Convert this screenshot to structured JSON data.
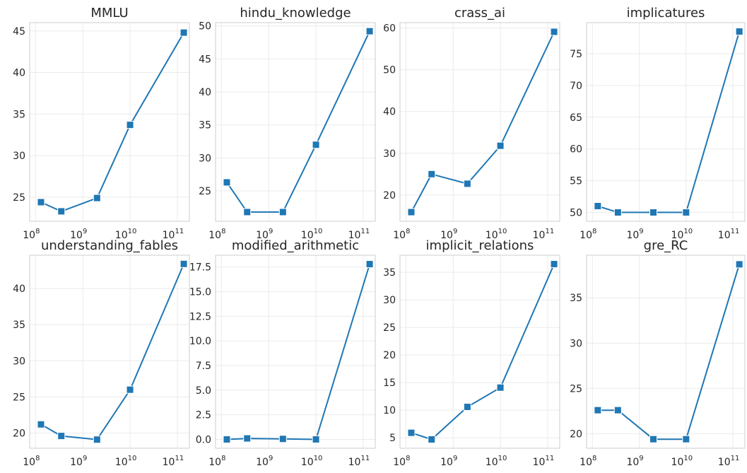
{
  "chart_data": [
    {
      "type": "line",
      "title": "MMLU",
      "x": [
        130000000,
        350000000,
        2000000000,
        10000000000,
        137000000000
      ],
      "y": [
        24.4,
        23.3,
        24.9,
        33.7,
        44.8
      ],
      "xscale": "log",
      "xlim": [
        75000000,
        180000000000
      ],
      "ylim": [
        22.1,
        46.0
      ],
      "yticks": [
        25,
        30,
        35,
        40,
        45
      ],
      "ytick_labels": [
        "25",
        "30",
        "35",
        "40",
        "45"
      ],
      "grid": true
    },
    {
      "type": "line",
      "title": "hindu_knowledge",
      "x": [
        130000000,
        350000000,
        2000000000,
        10000000000,
        137000000000
      ],
      "y": [
        26.3,
        21.8,
        21.8,
        32.0,
        49.2
      ],
      "xscale": "log",
      "xlim": [
        75000000,
        180000000000
      ],
      "ylim": [
        20.4,
        50.5
      ],
      "yticks": [
        25,
        30,
        35,
        40,
        45,
        50
      ],
      "ytick_labels": [
        "25",
        "30",
        "35",
        "40",
        "45",
        "50"
      ],
      "grid": true
    },
    {
      "type": "line",
      "title": "crass_ai",
      "x": [
        130000000,
        350000000,
        2000000000,
        10000000000,
        137000000000
      ],
      "y": [
        15.9,
        25.0,
        22.7,
        31.8,
        59.1
      ],
      "xscale": "log",
      "xlim": [
        75000000,
        180000000000
      ],
      "ylim": [
        13.7,
        61.3
      ],
      "yticks": [
        20,
        30,
        40,
        50,
        60
      ],
      "ytick_labels": [
        "20",
        "30",
        "40",
        "50",
        "60"
      ],
      "grid": true
    },
    {
      "type": "line",
      "title": "implicatures",
      "x": [
        130000000,
        350000000,
        2000000000,
        10000000000,
        137000000000
      ],
      "y": [
        51.0,
        50.0,
        50.0,
        50.0,
        78.5
      ],
      "xscale": "log",
      "xlim": [
        75000000,
        180000000000
      ],
      "ylim": [
        48.6,
        79.9
      ],
      "yticks": [
        50,
        55,
        60,
        65,
        70,
        75
      ],
      "ytick_labels": [
        "50",
        "55",
        "60",
        "65",
        "70",
        "75"
      ],
      "grid": true
    },
    {
      "type": "line",
      "title": "understanding_fables",
      "x": [
        130000000,
        350000000,
        2000000000,
        10000000000,
        137000000000
      ],
      "y": [
        21.2,
        19.6,
        19.1,
        26.0,
        43.4
      ],
      "xscale": "log",
      "xlim": [
        75000000,
        180000000000
      ],
      "ylim": [
        17.9,
        44.6
      ],
      "yticks": [
        20,
        25,
        30,
        35,
        40
      ],
      "ytick_labels": [
        "20",
        "25",
        "30",
        "35",
        "40"
      ],
      "grid": true
    },
    {
      "type": "line",
      "title": "modified_arithmetic",
      "x": [
        130000000,
        350000000,
        2000000000,
        10000000000,
        137000000000
      ],
      "y": [
        0.0,
        0.1,
        0.05,
        0.0,
        17.8
      ],
      "xscale": "log",
      "xlim": [
        75000000,
        180000000000
      ],
      "ylim": [
        -0.9,
        18.7
      ],
      "yticks": [
        0,
        2.5,
        5,
        7.5,
        10,
        12.5,
        15,
        17.5
      ],
      "ytick_labels": [
        "0.0",
        "2.5",
        "5.0",
        "7.5",
        "10.0",
        "12.5",
        "15.0",
        "17.5"
      ],
      "grid": true
    },
    {
      "type": "line",
      "title": "implicit_relations",
      "x": [
        130000000,
        350000000,
        2000000000,
        10000000000,
        137000000000
      ],
      "y": [
        5.9,
        4.7,
        10.6,
        14.1,
        36.5
      ],
      "xscale": "log",
      "xlim": [
        75000000,
        180000000000
      ],
      "ylim": [
        3.1,
        38.1
      ],
      "yticks": [
        5,
        10,
        15,
        20,
        25,
        30,
        35
      ],
      "ytick_labels": [
        "5",
        "10",
        "15",
        "20",
        "25",
        "30",
        "35"
      ],
      "grid": true
    },
    {
      "type": "line",
      "title": "gre_RC",
      "x": [
        130000000,
        350000000,
        2000000000,
        10000000000,
        137000000000
      ],
      "y": [
        22.6,
        22.6,
        19.4,
        19.4,
        38.7
      ],
      "xscale": "log",
      "xlim": [
        75000000,
        180000000000
      ],
      "ylim": [
        18.4,
        39.7
      ],
      "yticks": [
        20,
        25,
        30,
        35
      ],
      "ytick_labels": [
        "20",
        "25",
        "30",
        "35"
      ],
      "grid": true
    }
  ],
  "xticks": {
    "base": "10",
    "exponents": [
      "8",
      "9",
      "10",
      "11"
    ]
  },
  "style": {
    "line_color": "#1f77b4",
    "marker": "square",
    "grid_color": "#ebebeb",
    "frame_color": "#cccccc",
    "text_color": "#262626"
  }
}
